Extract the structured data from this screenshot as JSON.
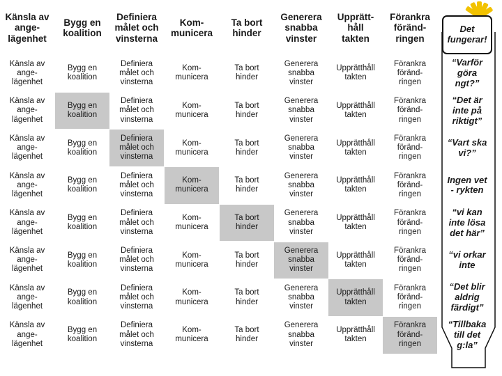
{
  "colors": {
    "highlight": "#c8c8c8",
    "text": "#1a1a1a",
    "accent": "#f2c200",
    "divider": "#d0d0d0"
  },
  "header": [
    "Känsla av\nange-\nlägenhet",
    "Bygg en\nkoalition",
    "Definiera\nmålet och\nvinsterna",
    "Kom-\nmunicera",
    "Ta bort\nhinder",
    "Generera\nsnabba\nvinster",
    "Upprätt-\nhåll\ntakten",
    "Förankra\nföränd-\nringen",
    "Det\nfungerar!"
  ],
  "steps": [
    "Känsla av\nange-\nlägenhet",
    "Bygg en\nkoalition",
    "Definiera\nmålet och\nvinsterna",
    "Kom-\nmunicera",
    "Ta bort\nhinder",
    "Generera\nsnabba\nvinster",
    "Upprätthåll\ntakten",
    "Förankra\nföränd-\nringen"
  ],
  "quotes": [
    "“Varför\ngöra\nngt?”",
    "“Det är\ninte på\nriktigt”",
    "“Vart ska\nvi?”",
    "Ingen vet\n- rykten",
    "“vi kan\ninte lösa\ndet här”",
    "“vi orkar\ninte",
    "“Det blir\naldrig\nfärdigt”",
    "“Tillbaka\ntill det\ng:la”"
  ]
}
